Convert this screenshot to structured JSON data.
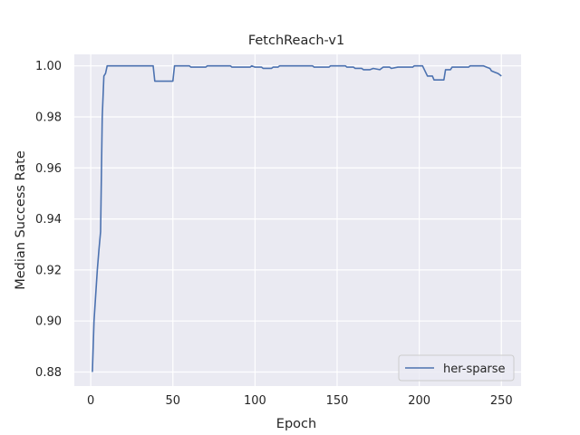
{
  "chart_data": {
    "type": "line",
    "title": "FetchReach-v1",
    "xlabel": "Epoch",
    "ylabel": "Median Success Rate",
    "xlim": [
      -10,
      262
    ],
    "ylim": [
      0.8745,
      1.0045
    ],
    "xticks": [
      0,
      50,
      100,
      150,
      200,
      250
    ],
    "xtick_labels": [
      "0",
      "50",
      "100",
      "150",
      "200",
      "250"
    ],
    "yticks": [
      0.88,
      0.9,
      0.92,
      0.94,
      0.96,
      0.98,
      1.0
    ],
    "ytick_labels": [
      "0.88",
      "0.90",
      "0.92",
      "0.94",
      "0.96",
      "0.98",
      "1.00"
    ],
    "grid": true,
    "legend_position": "bottom-right",
    "background": "#eaeaf2",
    "grid_color": "#ffffff",
    "series": [
      {
        "name": "her-sparse",
        "color": "#4c72b0",
        "points": [
          [
            1,
            0.88
          ],
          [
            2,
            0.9
          ],
          [
            3,
            0.91
          ],
          [
            4,
            0.92
          ],
          [
            5,
            0.928
          ],
          [
            6,
            0.935
          ],
          [
            7,
            0.98
          ],
          [
            8,
            0.996
          ],
          [
            9,
            0.997
          ],
          [
            10,
            1.0
          ],
          [
            20,
            1.0
          ],
          [
            30,
            1.0
          ],
          [
            38,
            1.0
          ],
          [
            39,
            0.994
          ],
          [
            45,
            0.994
          ],
          [
            50,
            0.994
          ],
          [
            51,
            1.0
          ],
          [
            60,
            1.0
          ],
          [
            61,
            0.9995
          ],
          [
            70,
            0.9995
          ],
          [
            71,
            1.0
          ],
          [
            85,
            1.0
          ],
          [
            86,
            0.9995
          ],
          [
            97,
            0.9995
          ],
          [
            98,
            1.0
          ],
          [
            100,
            0.9995
          ],
          [
            104,
            0.9995
          ],
          [
            105,
            0.999
          ],
          [
            110,
            0.999
          ],
          [
            111,
            0.9995
          ],
          [
            114,
            0.9995
          ],
          [
            115,
            1.0
          ],
          [
            135,
            1.0
          ],
          [
            136,
            0.9995
          ],
          [
            145,
            0.9995
          ],
          [
            146,
            1.0
          ],
          [
            155,
            1.0
          ],
          [
            156,
            0.9995
          ],
          [
            160,
            0.9995
          ],
          [
            161,
            0.999
          ],
          [
            165,
            0.999
          ],
          [
            166,
            0.9985
          ],
          [
            170,
            0.9985
          ],
          [
            172,
            0.999
          ],
          [
            176,
            0.9985
          ],
          [
            178,
            0.9995
          ],
          [
            182,
            0.9995
          ],
          [
            183,
            0.999
          ],
          [
            187,
            0.9995
          ],
          [
            196,
            0.9995
          ],
          [
            197,
            1.0
          ],
          [
            202,
            1.0
          ],
          [
            205,
            0.996
          ],
          [
            208,
            0.996
          ],
          [
            209,
            0.9945
          ],
          [
            215,
            0.9945
          ],
          [
            216,
            0.9985
          ],
          [
            219,
            0.9985
          ],
          [
            220,
            0.9995
          ],
          [
            230,
            0.9995
          ],
          [
            231,
            1.0
          ],
          [
            239,
            1.0
          ],
          [
            241,
            0.9995
          ],
          [
            243,
            0.999
          ],
          [
            244,
            0.998
          ],
          [
            246,
            0.9975
          ],
          [
            248,
            0.997
          ],
          [
            250,
            0.996
          ]
        ]
      }
    ]
  }
}
